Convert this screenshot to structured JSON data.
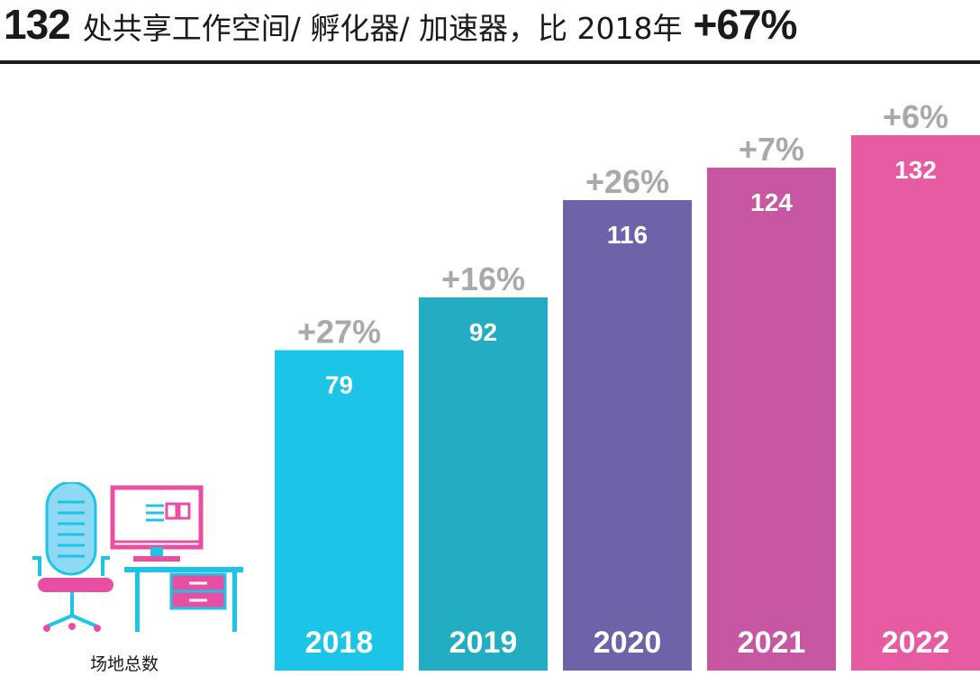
{
  "header": {
    "total": "132",
    "text": "处共享工作空间/ 孵化器/ 加速器，比 2018年",
    "change": "+67%"
  },
  "caption": "场地总数",
  "icon": "desk-computer-chair-icon",
  "chart_data": {
    "type": "bar",
    "categories": [
      "2018",
      "2019",
      "2020",
      "2021",
      "2022"
    ],
    "values": [
      79,
      92,
      116,
      124,
      132
    ],
    "growth_labels": [
      "+27%",
      "+16%",
      "+26%",
      "+7%",
      "+6%"
    ],
    "colors": [
      "#1cc5e8",
      "#23adc3",
      "#6c63a8",
      "#c857a3",
      "#e65ba2"
    ],
    "growth_color": "#a7a9ac",
    "label_color": "#ffffff",
    "title": "",
    "xlabel": "",
    "ylabel": "",
    "grid": false
  }
}
